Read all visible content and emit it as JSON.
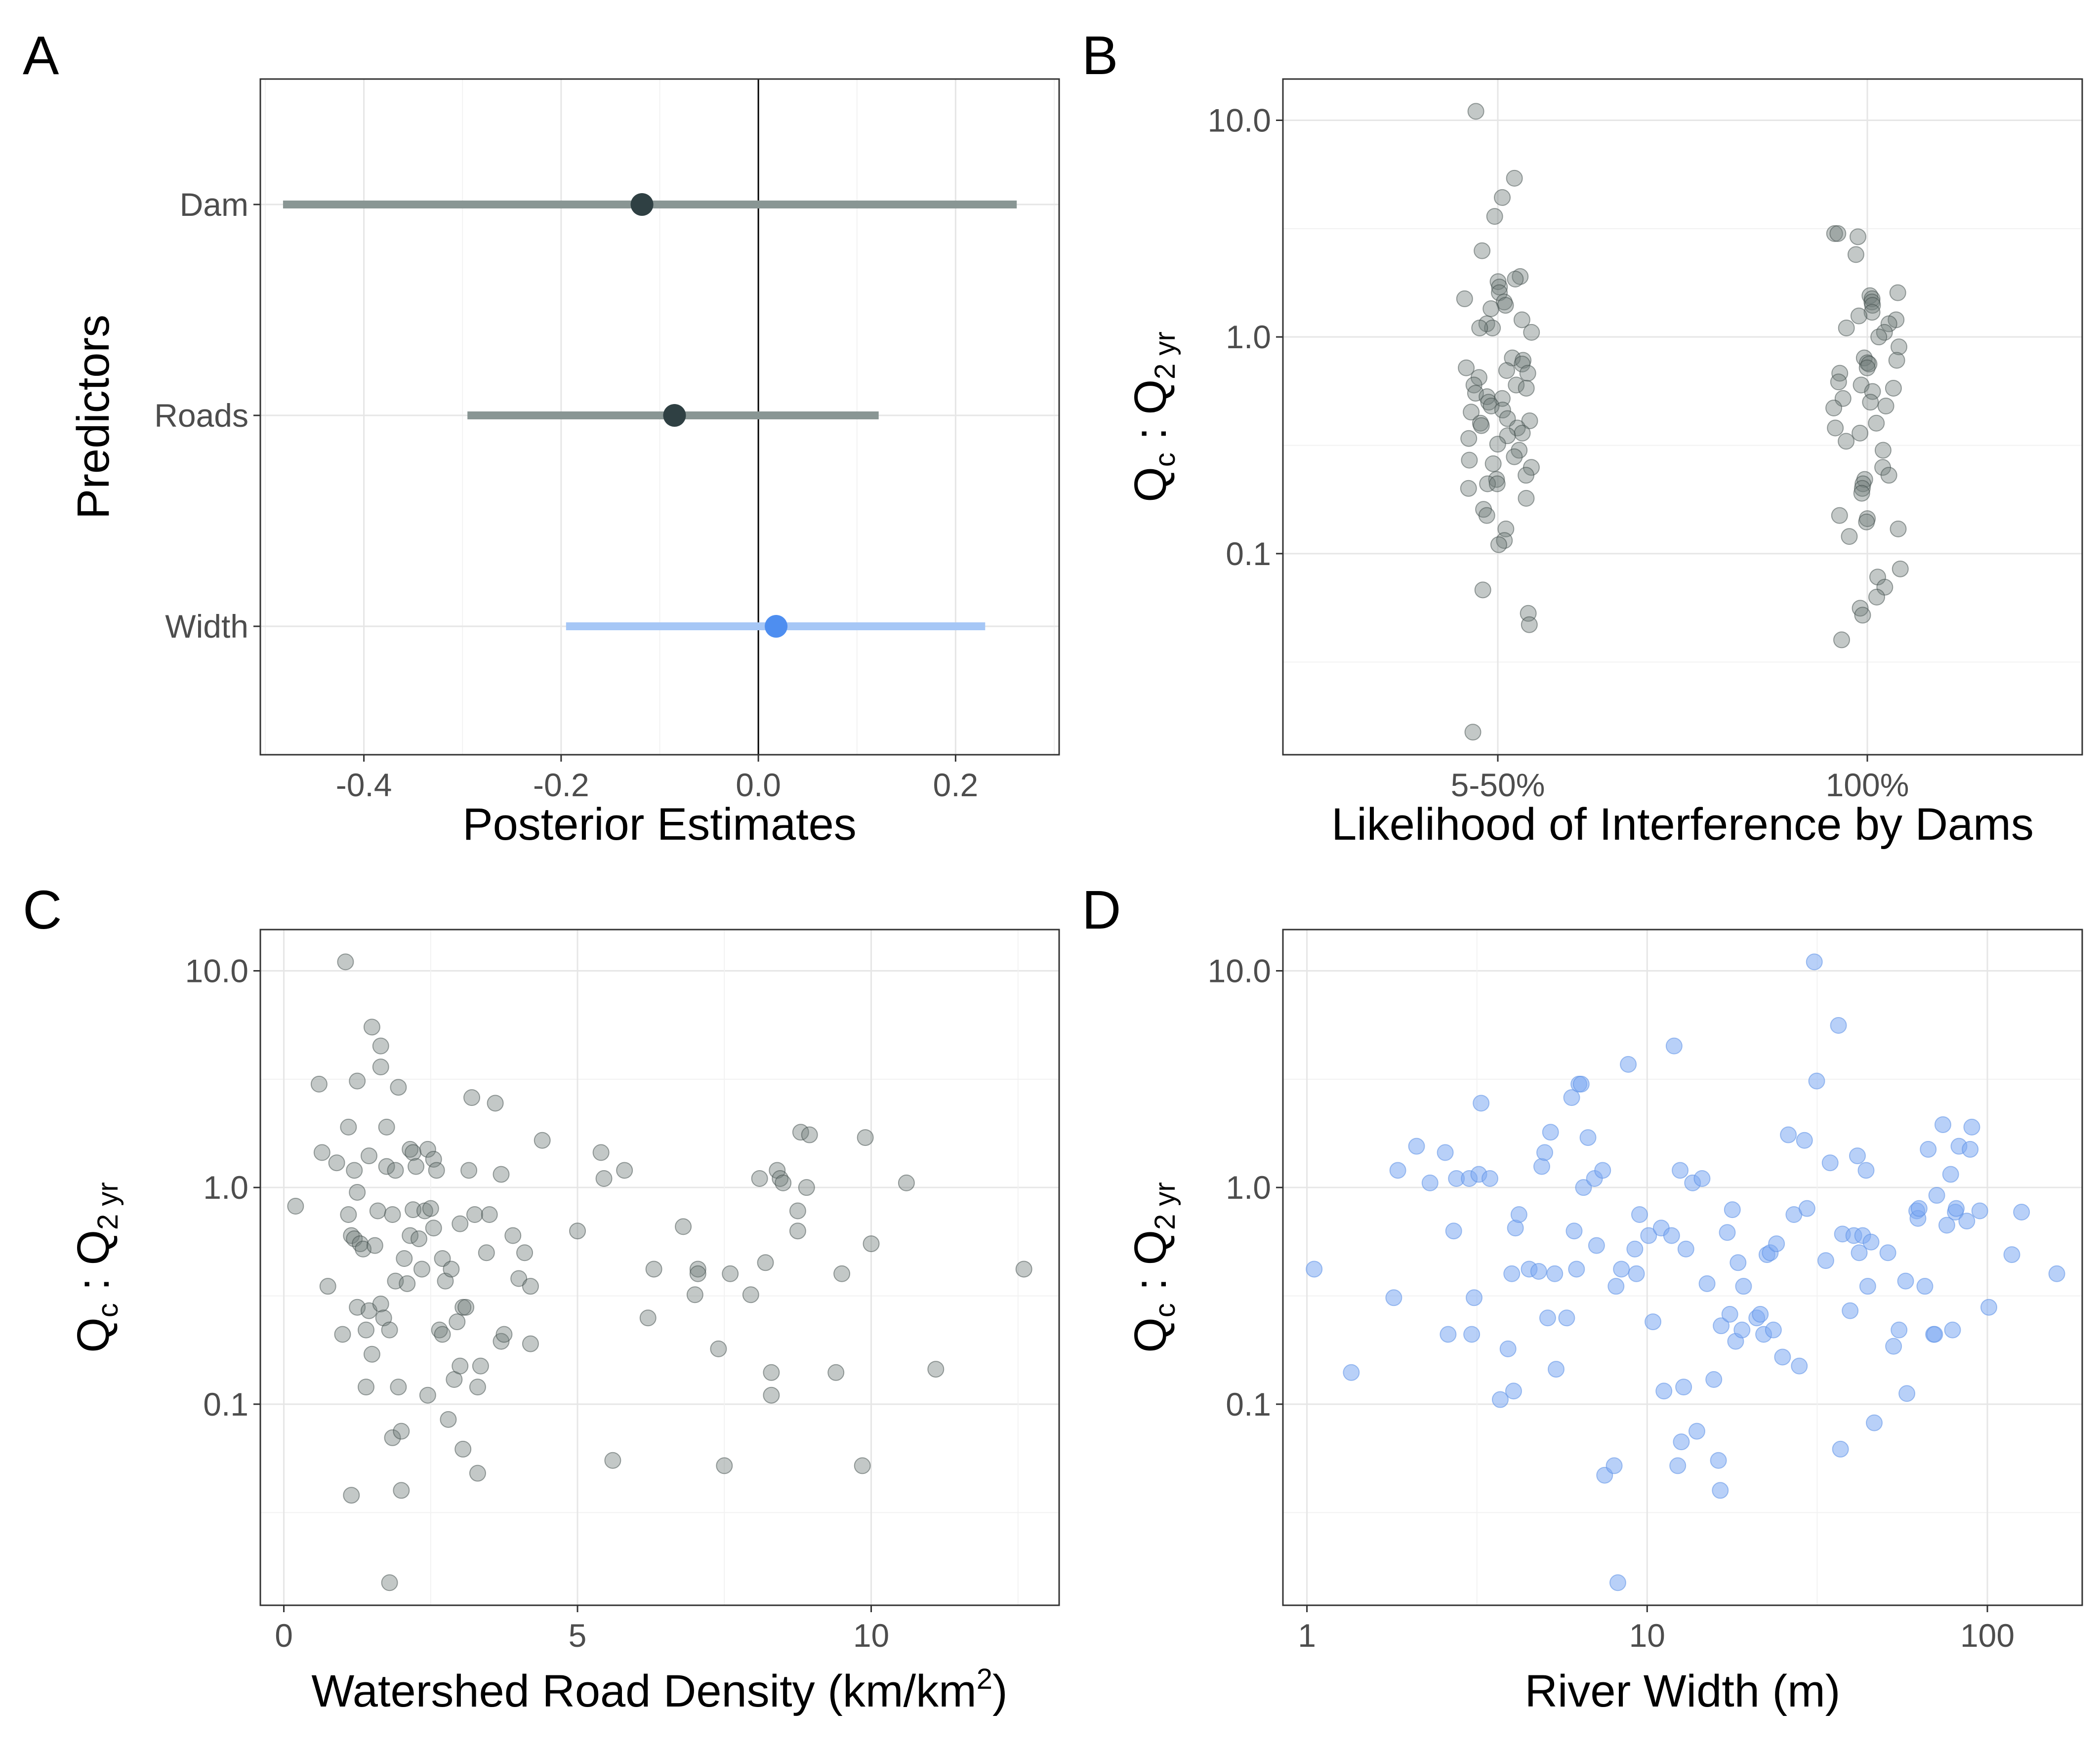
{
  "panel_labels": [
    "A",
    "B",
    "C",
    "D"
  ],
  "colors": {
    "dam": "#2f4043",
    "dam_interval": "#899694",
    "width": "#4e8ef0",
    "width_interval": "#a6c7f6",
    "scatter_grey": "#6f7c79",
    "scatter_blue": "#7eaaf2"
  },
  "chart_data": [
    {
      "panel": "A",
      "type": "scatter",
      "orientation": "horizontal-interval",
      "title": "",
      "xlabel": "Posterior Estimates",
      "ylabel": "Predictors",
      "xlim": [
        -0.505,
        0.305
      ],
      "xticks": [
        -0.4,
        -0.2,
        0.0,
        0.2
      ],
      "xtick_labels": [
        "-0.4",
        "-0.2",
        "0.0",
        "0.2"
      ],
      "categories": [
        "Dam",
        "Roads",
        "Width"
      ],
      "estimates": [
        -0.118,
        -0.085,
        0.018
      ],
      "lower": [
        -0.482,
        -0.295,
        -0.195
      ],
      "upper": [
        0.262,
        0.122,
        0.23
      ],
      "reference_line": 0,
      "grid": true
    },
    {
      "panel": "B",
      "type": "scatter",
      "title": "",
      "xlabel": "Likelihood of Interference by Dams",
      "ylabel": "Qc : Q2 yr",
      "y_scale": "log10",
      "ylim": [
        0.0118,
        15.5
      ],
      "yticks": [
        0.1,
        1.0,
        10.0
      ],
      "ytick_labels": [
        "0.1",
        "1.0",
        "10.0"
      ],
      "categories": [
        "5-50%",
        "100%"
      ],
      "points_by_category": [
        [
          11.0,
          5.4,
          4.4,
          3.6,
          2.5,
          1.9,
          1.85,
          1.8,
          1.7,
          1.6,
          1.5,
          1.45,
          1.4,
          1.35,
          1.2,
          1.15,
          1.1,
          1.1,
          1.05,
          0.8,
          0.78,
          0.75,
          0.72,
          0.7,
          0.68,
          0.65,
          0.6,
          0.6,
          0.58,
          0.55,
          0.53,
          0.52,
          0.5,
          0.48,
          0.46,
          0.45,
          0.42,
          0.41,
          0.4,
          0.39,
          0.38,
          0.36,
          0.35,
          0.34,
          0.32,
          0.3,
          0.28,
          0.27,
          0.26,
          0.25,
          0.23,
          0.22,
          0.21,
          0.21,
          0.2,
          0.18,
          0.16,
          0.15,
          0.13,
          0.115,
          0.11,
          0.068,
          0.053,
          0.047,
          0.015
        ],
        [
          3.0,
          3.0,
          2.9,
          2.4,
          1.6,
          1.55,
          1.5,
          1.45,
          1.4,
          1.3,
          1.25,
          1.2,
          1.15,
          1.1,
          1.05,
          1.0,
          0.9,
          0.8,
          0.78,
          0.76,
          0.75,
          0.72,
          0.68,
          0.62,
          0.6,
          0.58,
          0.56,
          0.52,
          0.5,
          0.48,
          0.47,
          0.4,
          0.38,
          0.36,
          0.33,
          0.3,
          0.25,
          0.23,
          0.22,
          0.21,
          0.2,
          0.19,
          0.15,
          0.145,
          0.14,
          0.13,
          0.12,
          0.085,
          0.078,
          0.07,
          0.063,
          0.056,
          0.052,
          0.04
        ]
      ],
      "grid": true
    },
    {
      "panel": "C",
      "type": "scatter",
      "title": "",
      "xlabel": "Watershed Road Density (km/km2)",
      "ylabel": "Qc : Q2 yr",
      "y_scale": "log10",
      "xlim": [
        -0.4,
        13.2
      ],
      "ylim": [
        0.0118,
        15.5
      ],
      "xticks": [
        0,
        5,
        10
      ],
      "xtick_labels": [
        "0",
        "5",
        "10"
      ],
      "yticks": [
        0.1,
        1.0,
        10.0
      ],
      "ytick_labels": [
        "0.1",
        "1.0",
        "10.0"
      ],
      "points": [
        [
          0.2,
          0.82
        ],
        [
          0.6,
          3.0
        ],
        [
          0.65,
          1.45
        ],
        [
          0.75,
          0.35
        ],
        [
          0.9,
          1.3
        ],
        [
          1.0,
          0.21
        ],
        [
          1.05,
          11.0
        ],
        [
          1.1,
          1.9
        ],
        [
          1.1,
          0.75
        ],
        [
          1.15,
          0.6
        ],
        [
          1.15,
          0.038
        ],
        [
          1.2,
          1.2
        ],
        [
          1.2,
          0.58
        ],
        [
          1.25,
          3.1
        ],
        [
          1.25,
          0.95
        ],
        [
          1.25,
          0.28
        ],
        [
          1.3,
          0.55
        ],
        [
          1.35,
          0.52
        ],
        [
          1.4,
          0.22
        ],
        [
          1.4,
          0.12
        ],
        [
          1.45,
          1.4
        ],
        [
          1.45,
          0.27
        ],
        [
          1.5,
          5.5
        ],
        [
          1.5,
          0.17
        ],
        [
          1.55,
          0.54
        ],
        [
          1.6,
          0.78
        ],
        [
          1.65,
          4.5
        ],
        [
          1.65,
          3.6
        ],
        [
          1.65,
          0.29
        ],
        [
          1.7,
          0.25
        ],
        [
          1.75,
          1.9
        ],
        [
          1.75,
          1.25
        ],
        [
          1.8,
          0.22
        ],
        [
          1.8,
          0.015
        ],
        [
          1.85,
          0.75
        ],
        [
          1.85,
          0.07
        ],
        [
          1.9,
          1.2
        ],
        [
          1.9,
          0.37
        ],
        [
          1.95,
          2.9
        ],
        [
          1.95,
          0.12
        ],
        [
          2.0,
          0.075
        ],
        [
          2.0,
          0.04
        ],
        [
          2.05,
          0.47
        ],
        [
          2.1,
          0.36
        ],
        [
          2.15,
          1.5
        ],
        [
          2.15,
          0.6
        ],
        [
          2.2,
          1.45
        ],
        [
          2.2,
          0.79
        ],
        [
          2.25,
          1.25
        ],
        [
          2.3,
          0.58
        ],
        [
          2.35,
          0.42
        ],
        [
          2.4,
          0.78
        ],
        [
          2.45,
          1.5
        ],
        [
          2.45,
          0.11
        ],
        [
          2.5,
          0.8
        ],
        [
          2.55,
          1.35
        ],
        [
          2.55,
          0.65
        ],
        [
          2.6,
          1.2
        ],
        [
          2.65,
          0.22
        ],
        [
          2.7,
          0.47
        ],
        [
          2.7,
          0.21
        ],
        [
          2.75,
          0.37
        ],
        [
          2.8,
          0.085
        ],
        [
          2.85,
          0.42
        ],
        [
          2.9,
          0.13
        ],
        [
          2.95,
          0.24
        ],
        [
          3.0,
          0.68
        ],
        [
          3.0,
          0.15
        ],
        [
          3.05,
          0.28
        ],
        [
          3.05,
          0.062
        ],
        [
          3.1,
          0.28
        ],
        [
          3.15,
          1.2
        ],
        [
          3.2,
          2.6
        ],
        [
          3.25,
          0.75
        ],
        [
          3.3,
          0.12
        ],
        [
          3.3,
          0.048
        ],
        [
          3.35,
          0.15
        ],
        [
          3.45,
          0.5
        ],
        [
          3.5,
          0.75
        ],
        [
          3.6,
          2.45
        ],
        [
          3.7,
          1.15
        ],
        [
          3.7,
          0.195
        ],
        [
          3.75,
          0.21
        ],
        [
          3.9,
          0.6
        ],
        [
          4.0,
          0.38
        ],
        [
          4.1,
          0.5
        ],
        [
          4.2,
          0.35
        ],
        [
          4.2,
          0.19
        ],
        [
          4.4,
          1.65
        ],
        [
          5.0,
          0.63
        ],
        [
          5.4,
          1.45
        ],
        [
          5.45,
          1.1
        ],
        [
          5.6,
          0.055
        ],
        [
          5.8,
          1.2
        ],
        [
          6.2,
          0.25
        ],
        [
          6.3,
          0.42
        ],
        [
          6.8,
          0.66
        ],
        [
          7.0,
          0.32
        ],
        [
          7.05,
          0.42
        ],
        [
          7.05,
          0.4
        ],
        [
          7.4,
          0.18
        ],
        [
          7.5,
          0.052
        ],
        [
          7.6,
          0.4
        ],
        [
          7.95,
          0.32
        ],
        [
          8.1,
          1.1
        ],
        [
          8.2,
          0.45
        ],
        [
          8.3,
          0.14
        ],
        [
          8.3,
          0.11
        ],
        [
          8.4,
          1.2
        ],
        [
          8.45,
          1.1
        ],
        [
          8.5,
          1.05
        ],
        [
          8.75,
          0.63
        ],
        [
          8.75,
          0.78
        ],
        [
          8.8,
          1.8
        ],
        [
          8.9,
          1.0
        ],
        [
          8.95,
          1.75
        ],
        [
          9.4,
          0.14
        ],
        [
          9.5,
          0.4
        ],
        [
          9.85,
          0.052
        ],
        [
          9.9,
          1.7
        ],
        [
          10.0,
          0.55
        ],
        [
          10.6,
          1.05
        ],
        [
          11.1,
          0.145
        ],
        [
          12.6,
          0.42
        ]
      ],
      "grid": true
    },
    {
      "panel": "D",
      "type": "scatter",
      "title": "",
      "xlabel": "River Width (m)",
      "ylabel": "Qc : Q2 yr",
      "x_scale": "log10",
      "y_scale": "log10",
      "xlim": [
        0.85,
        190
      ],
      "ylim": [
        0.0118,
        15.5
      ],
      "xticks": [
        1,
        10,
        100
      ],
      "xtick_labels": [
        "1",
        "10",
        "100"
      ],
      "yticks": [
        0.1,
        1.0,
        10.0
      ],
      "ytick_labels": [
        "0.1",
        "1.0",
        "10.0"
      ],
      "points": [
        [
          1.05,
          0.42
        ],
        [
          1.35,
          0.14
        ],
        [
          1.8,
          0.31
        ],
        [
          1.85,
          1.2
        ],
        [
          2.1,
          1.55
        ],
        [
          2.3,
          1.05
        ],
        [
          2.55,
          1.45
        ],
        [
          2.6,
          0.21
        ],
        [
          2.7,
          0.63
        ],
        [
          2.75,
          1.1
        ],
        [
          3.0,
          1.1
        ],
        [
          3.05,
          0.21
        ],
        [
          3.1,
          0.31
        ],
        [
          3.2,
          1.15
        ],
        [
          3.25,
          2.45
        ],
        [
          3.45,
          1.1
        ],
        [
          3.7,
          0.105
        ],
        [
          3.9,
          0.18
        ],
        [
          4.0,
          0.4
        ],
        [
          4.05,
          0.115
        ],
        [
          4.1,
          0.65
        ],
        [
          4.2,
          0.75
        ],
        [
          4.5,
          0.42
        ],
        [
          4.8,
          0.41
        ],
        [
          4.9,
          1.25
        ],
        [
          5.0,
          1.45
        ],
        [
          5.1,
          0.25
        ],
        [
          5.2,
          1.8
        ],
        [
          5.35,
          0.4
        ],
        [
          5.4,
          0.145
        ],
        [
          5.8,
          0.25
        ],
        [
          6.0,
          2.6
        ],
        [
          6.1,
          0.63
        ],
        [
          6.2,
          0.42
        ],
        [
          6.3,
          3.0
        ],
        [
          6.4,
          3.0
        ],
        [
          6.5,
          1.0
        ],
        [
          6.7,
          1.7
        ],
        [
          7.0,
          1.1
        ],
        [
          7.1,
          0.54
        ],
        [
          7.4,
          1.2
        ],
        [
          7.5,
          0.047
        ],
        [
          8.0,
          0.052
        ],
        [
          8.1,
          0.35
        ],
        [
          8.2,
          0.015
        ],
        [
          8.4,
          0.42
        ],
        [
          8.8,
          3.7
        ],
        [
          9.2,
          0.52
        ],
        [
          9.3,
          0.4
        ],
        [
          9.5,
          0.75
        ],
        [
          10.1,
          0.6
        ],
        [
          10.4,
          0.24
        ],
        [
          11.0,
          0.65
        ],
        [
          11.2,
          0.115
        ],
        [
          11.8,
          0.6
        ],
        [
          12.0,
          4.5
        ],
        [
          12.3,
          0.052
        ],
        [
          12.5,
          1.2
        ],
        [
          12.6,
          0.067
        ],
        [
          12.8,
          0.12
        ],
        [
          13.0,
          0.52
        ],
        [
          13.6,
          1.05
        ],
        [
          14.0,
          0.075
        ],
        [
          14.5,
          1.1
        ],
        [
          15.0,
          0.36
        ],
        [
          15.7,
          0.13
        ],
        [
          16.2,
          0.055
        ],
        [
          16.4,
          0.04
        ],
        [
          16.5,
          0.23
        ],
        [
          17.2,
          0.62
        ],
        [
          17.5,
          0.26
        ],
        [
          17.8,
          0.79
        ],
        [
          18.2,
          0.195
        ],
        [
          18.5,
          0.45
        ],
        [
          19.0,
          0.22
        ],
        [
          19.2,
          0.35
        ],
        [
          21.0,
          0.25
        ],
        [
          21.5,
          0.26
        ],
        [
          22.0,
          0.21
        ],
        [
          22.5,
          0.49
        ],
        [
          23.0,
          0.5
        ],
        [
          23.5,
          0.22
        ],
        [
          24.0,
          0.55
        ],
        [
          25.0,
          0.165
        ],
        [
          26.0,
          1.75
        ],
        [
          27.0,
          0.75
        ],
        [
          28.0,
          0.15
        ],
        [
          29.0,
          1.65
        ],
        [
          29.5,
          0.8
        ],
        [
          31.0,
          11.0
        ],
        [
          31.5,
          3.1
        ],
        [
          33.5,
          0.46
        ],
        [
          34.5,
          1.3
        ],
        [
          36.5,
          5.6
        ],
        [
          37.0,
          0.062
        ],
        [
          37.5,
          0.61
        ],
        [
          39.5,
          0.27
        ],
        [
          40.5,
          0.6
        ],
        [
          41.5,
          1.4
        ],
        [
          42.0,
          0.5
        ],
        [
          43.0,
          0.6
        ],
        [
          44.0,
          1.2
        ],
        [
          44.5,
          0.35
        ],
        [
          45.5,
          0.56
        ],
        [
          46.5,
          0.082
        ],
        [
          51.0,
          0.5
        ],
        [
          53.0,
          0.185
        ],
        [
          55.0,
          0.22
        ],
        [
          57.5,
          0.37
        ],
        [
          58.0,
          0.112
        ],
        [
          62.0,
          0.78
        ],
        [
          62.5,
          0.72
        ],
        [
          63.0,
          0.8
        ],
        [
          65.5,
          0.35
        ],
        [
          67.0,
          1.5
        ],
        [
          69.5,
          0.21
        ],
        [
          70.0,
          0.21
        ],
        [
          71.0,
          0.92
        ],
        [
          74.0,
          1.95
        ],
        [
          76.0,
          0.67
        ],
        [
          78.0,
          1.15
        ],
        [
          79.0,
          0.22
        ],
        [
          80.5,
          0.77
        ],
        [
          81.0,
          0.8
        ],
        [
          82.5,
          1.55
        ],
        [
          87.0,
          0.7
        ],
        [
          89.0,
          1.5
        ],
        [
          90.0,
          1.9
        ],
        [
          95.0,
          0.78
        ],
        [
          101.0,
          0.28
        ],
        [
          118.0,
          0.49
        ],
        [
          126.0,
          0.77
        ],
        [
          160.0,
          0.4
        ]
      ],
      "grid": true
    }
  ]
}
